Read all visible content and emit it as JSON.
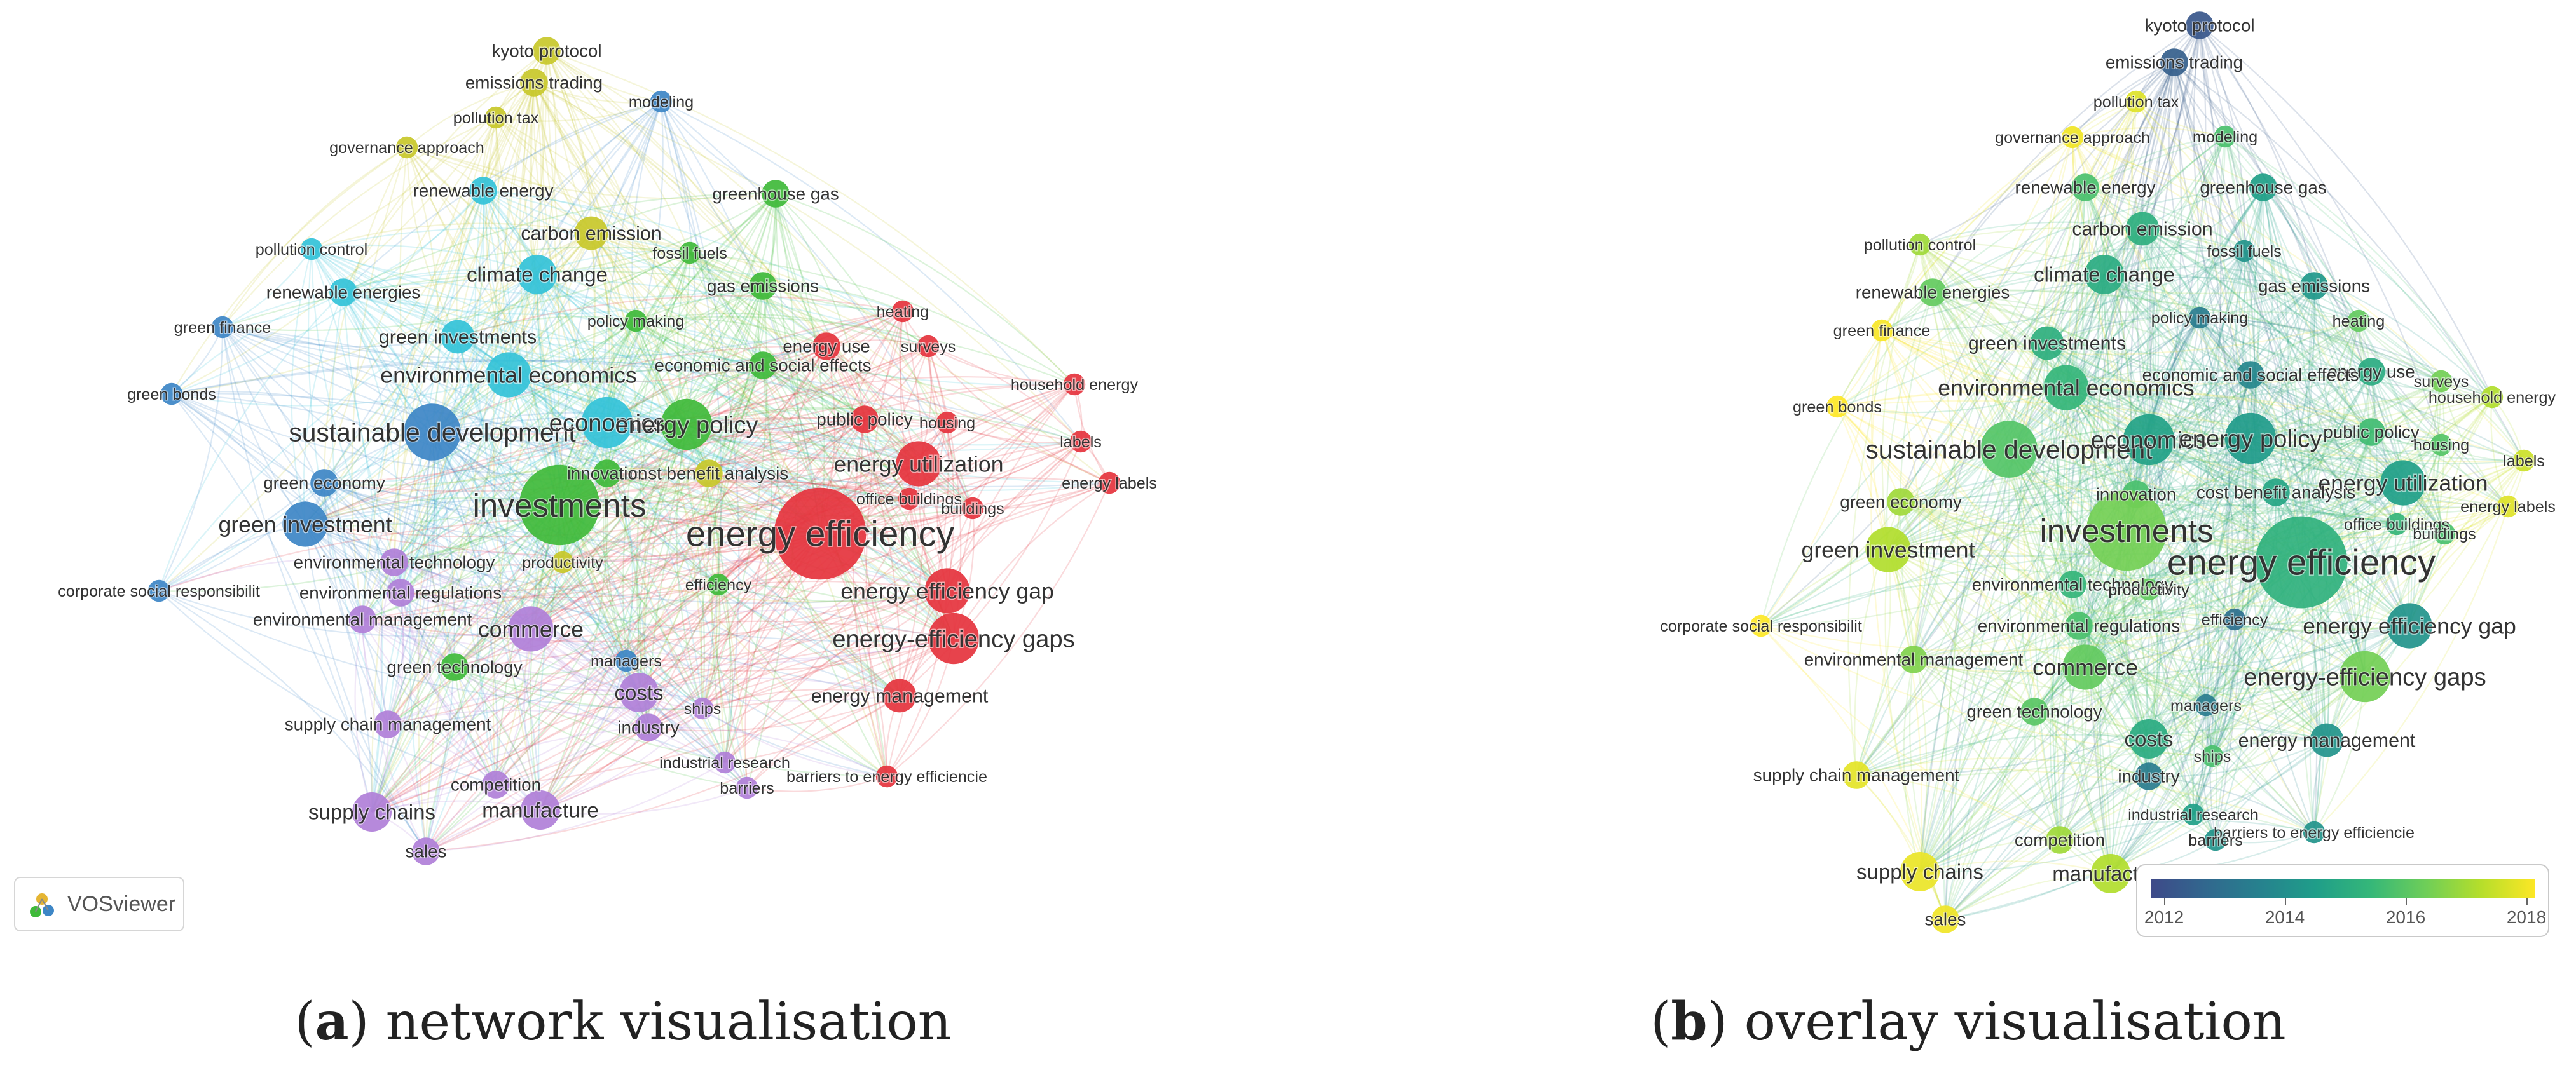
{
  "panels": {
    "a": {
      "caption_letter": "a",
      "caption_text": " network visualisation",
      "logo_text": "VOSviewer"
    },
    "b": {
      "caption_letter": "b",
      "caption_text": " overlay visualisation",
      "colorbar_ticks": [
        "2012",
        "2014",
        "2016",
        "2018"
      ]
    }
  },
  "colors": {
    "red": "#e5333d",
    "green": "#3fba3a",
    "blue": "#3d86c6",
    "yellow": "#c8c82a",
    "purple": "#b07fd8",
    "cyan": "#33c2d8",
    "viridis": [
      "#3e4a89",
      "#31688e",
      "#26828e",
      "#1f9e89",
      "#35b779",
      "#6ece58",
      "#b5de2b",
      "#fde725"
    ]
  },
  "nodes": [
    {
      "label": "kyoto protocol",
      "cluster": "yellow",
      "size": 3,
      "year": 2011.5
    },
    {
      "label": "emissions trading",
      "cluster": "yellow",
      "size": 3,
      "year": 2011.8
    },
    {
      "label": "pollution tax",
      "cluster": "yellow",
      "size": 2,
      "year": 2018.5
    },
    {
      "label": "governance approach",
      "cluster": "yellow",
      "size": 2,
      "year": 2018.8
    },
    {
      "label": "modeling",
      "cluster": "blue",
      "size": 2,
      "year": 2016
    },
    {
      "label": "renewable energy",
      "cluster": "cyan",
      "size": 3,
      "year": 2016
    },
    {
      "label": "greenhouse gas",
      "cluster": "green",
      "size": 3,
      "year": 2014.5
    },
    {
      "label": "carbon emission",
      "cluster": "yellow",
      "size": 4,
      "year": 2015.2
    },
    {
      "label": "pollution control",
      "cluster": "cyan",
      "size": 2,
      "year": 2017.5
    },
    {
      "label": "climate change",
      "cluster": "cyan",
      "size": 5,
      "year": 2015
    },
    {
      "label": "fossil fuels",
      "cluster": "green",
      "size": 2,
      "year": 2014
    },
    {
      "label": "renewable energies",
      "cluster": "cyan",
      "size": 3,
      "year": 2016.5
    },
    {
      "label": "gas emissions",
      "cluster": "green",
      "size": 3,
      "year": 2014.2
    },
    {
      "label": "green finance",
      "cluster": "blue",
      "size": 2,
      "year": 2018.9
    },
    {
      "label": "heating",
      "cluster": "red",
      "size": 2,
      "year": 2016.5
    },
    {
      "label": "policy making",
      "cluster": "green",
      "size": 2,
      "year": 2013
    },
    {
      "label": "green investments",
      "cluster": "cyan",
      "size": 4,
      "year": 2015.2
    },
    {
      "label": "energy use",
      "cluster": "red",
      "size": 3,
      "year": 2015
    },
    {
      "label": "surveys",
      "cluster": "red",
      "size": 2,
      "year": 2016.8
    },
    {
      "label": "environmental economics",
      "cluster": "cyan",
      "size": 6,
      "year": 2015.5
    },
    {
      "label": "economic and social effects",
      "cluster": "green",
      "size": 3,
      "year": 2013.5
    },
    {
      "label": "household energy",
      "cluster": "red",
      "size": 2,
      "year": 2017.8
    },
    {
      "label": "green bonds",
      "cluster": "blue",
      "size": 2,
      "year": 2019
    },
    {
      "label": "public policy",
      "cluster": "red",
      "size": 3,
      "year": 2015.8
    },
    {
      "label": "sustainable development",
      "cluster": "blue",
      "size": 8,
      "year": 2016.2
    },
    {
      "label": "economics",
      "cluster": "cyan",
      "size": 7,
      "year": 2014.6
    },
    {
      "label": "energy policy",
      "cluster": "green",
      "size": 7,
      "year": 2014.3
    },
    {
      "label": "housing",
      "cluster": "red",
      "size": 2,
      "year": 2016.2
    },
    {
      "label": "labels",
      "cluster": "red",
      "size": 2,
      "year": 2018.2
    },
    {
      "label": "energy utilization",
      "cluster": "red",
      "size": 6,
      "year": 2014.5
    },
    {
      "label": "energy labels",
      "cluster": "red",
      "size": 2,
      "year": 2018.5
    },
    {
      "label": "green economy",
      "cluster": "blue",
      "size": 3,
      "year": 2017.5
    },
    {
      "label": "cost benefit analysis",
      "cluster": "yellow",
      "size": 3,
      "year": 2014.8
    },
    {
      "label": "innovation",
      "cluster": "green",
      "size": 3,
      "year": 2016
    },
    {
      "label": "office buildings",
      "cluster": "red",
      "size": 2,
      "year": 2015.5
    },
    {
      "label": "buildings",
      "cluster": "red",
      "size": 2,
      "year": 2016
    },
    {
      "label": "investments",
      "cluster": "green",
      "size": 12,
      "year": 2016.8
    },
    {
      "label": "green investment",
      "cluster": "blue",
      "size": 6,
      "year": 2017.8
    },
    {
      "label": "energy efficiency",
      "cluster": "red",
      "size": 14,
      "year": 2015.3
    },
    {
      "label": "environmental technology",
      "cluster": "purple",
      "size": 3,
      "year": 2015.5
    },
    {
      "label": "productivity",
      "cluster": "yellow",
      "size": 2,
      "year": 2016.5
    },
    {
      "label": "environmental regulations",
      "cluster": "purple",
      "size": 3,
      "year": 2016
    },
    {
      "label": "corporate social responsibilit",
      "cluster": "blue",
      "size": 2,
      "year": 2019
    },
    {
      "label": "efficiency",
      "cluster": "green",
      "size": 2,
      "year": 2012.5
    },
    {
      "label": "energy efficiency gap",
      "cluster": "red",
      "size": 6,
      "year": 2014
    },
    {
      "label": "environmental management",
      "cluster": "purple",
      "size": 3,
      "year": 2017
    },
    {
      "label": "commerce",
      "cluster": "purple",
      "size": 6,
      "year": 2016.5
    },
    {
      "label": "energy-efficiency gaps",
      "cluster": "red",
      "size": 7,
      "year": 2016.8
    },
    {
      "label": "green technology",
      "cluster": "green",
      "size": 3,
      "year": 2016.3
    },
    {
      "label": "managers",
      "cluster": "blue",
      "size": 2,
      "year": 2013
    },
    {
      "label": "costs",
      "cluster": "purple",
      "size": 5,
      "year": 2015
    },
    {
      "label": "energy management",
      "cluster": "red",
      "size": 4,
      "year": 2014
    },
    {
      "label": "supply chain management",
      "cluster": "purple",
      "size": 3,
      "year": 2018.6
    },
    {
      "label": "ships",
      "cluster": "purple",
      "size": 2,
      "year": 2016
    },
    {
      "label": "industry",
      "cluster": "purple",
      "size": 3,
      "year": 2013
    },
    {
      "label": "industrial research",
      "cluster": "purple",
      "size": 2,
      "year": 2014.5
    },
    {
      "label": "barriers to energy efficiencie",
      "cluster": "red",
      "size": 2,
      "year": 2014
    },
    {
      "label": "competition",
      "cluster": "purple",
      "size": 3,
      "year": 2017.5
    },
    {
      "label": "barriers",
      "cluster": "purple",
      "size": 2,
      "year": 2014
    },
    {
      "label": "supply chains",
      "cluster": "purple",
      "size": 5,
      "year": 2018.7
    },
    {
      "label": "manufacture",
      "cluster": "purple",
      "size": 5,
      "year": 2017.8
    },
    {
      "label": "sales",
      "cluster": "purple",
      "size": 3,
      "year": 2018.8
    }
  ]
}
